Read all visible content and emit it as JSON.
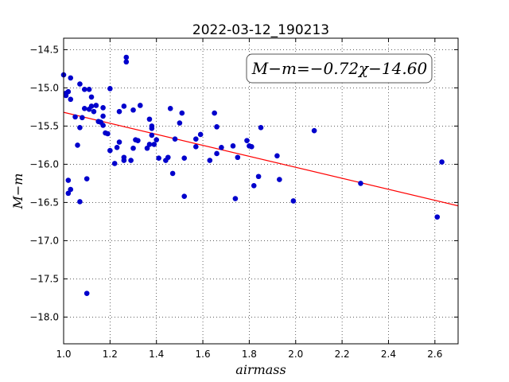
{
  "chart_data": {
    "type": "scatter",
    "title": "2022-03-12_190213",
    "xlabel": "airmass",
    "ylabel": "M−m",
    "xlim": [
      1.0,
      2.7
    ],
    "ylim": [
      -18.35,
      -14.35
    ],
    "x_ticks": [
      "1.0",
      "1.2",
      "1.4",
      "1.6",
      "1.8",
      "2.0",
      "2.2",
      "2.4",
      "2.6"
    ],
    "y_ticks": [
      "−14.5",
      "−15.0",
      "−15.5",
      "−16.0",
      "−16.5",
      "−17.0",
      "−17.5",
      "−18.0"
    ],
    "grid": true,
    "annotation": "M−m=−0.72χ−14.60",
    "fit": {
      "slope": -0.72,
      "intercept": -14.6,
      "color": "#ff0000"
    },
    "marker_color": "#0000cc",
    "points": [
      [
        1.0,
        -14.83
      ],
      [
        1.01,
        -15.07
      ],
      [
        1.01,
        -15.1
      ],
      [
        1.02,
        -15.05
      ],
      [
        1.03,
        -14.87
      ],
      [
        1.03,
        -15.15
      ],
      [
        1.05,
        -15.38
      ],
      [
        1.06,
        -15.75
      ],
      [
        1.07,
        -14.95
      ],
      [
        1.07,
        -15.52
      ],
      [
        1.08,
        -15.39
      ],
      [
        1.09,
        -15.27
      ],
      [
        1.09,
        -15.02
      ],
      [
        1.11,
        -15.28
      ],
      [
        1.11,
        -15.02
      ],
      [
        1.12,
        -15.12
      ],
      [
        1.12,
        -15.24
      ],
      [
        1.13,
        -15.31
      ],
      [
        1.14,
        -15.23
      ],
      [
        1.15,
        -15.44
      ],
      [
        1.16,
        -15.45
      ],
      [
        1.17,
        -15.26
      ],
      [
        1.17,
        -15.37
      ],
      [
        1.17,
        -15.49
      ],
      [
        1.18,
        -15.59
      ],
      [
        1.19,
        -15.6
      ],
      [
        1.2,
        -15.01
      ],
      [
        1.2,
        -15.82
      ],
      [
        1.22,
        -15.99
      ],
      [
        1.23,
        -15.78
      ],
      [
        1.24,
        -15.71
      ],
      [
        1.24,
        -15.31
      ],
      [
        1.26,
        -15.95
      ],
      [
        1.26,
        -15.91
      ],
      [
        1.26,
        -15.24
      ],
      [
        1.27,
        -14.6
      ],
      [
        1.27,
        -14.66
      ],
      [
        1.29,
        -15.95
      ],
      [
        1.3,
        -15.79
      ],
      [
        1.3,
        -15.29
      ],
      [
        1.31,
        -15.68
      ],
      [
        1.32,
        -15.69
      ],
      [
        1.33,
        -15.23
      ],
      [
        1.36,
        -15.79
      ],
      [
        1.37,
        -15.74
      ],
      [
        1.37,
        -15.41
      ],
      [
        1.38,
        -15.5
      ],
      [
        1.38,
        -15.53
      ],
      [
        1.38,
        -15.62
      ],
      [
        1.39,
        -15.74
      ],
      [
        1.4,
        -15.68
      ],
      [
        1.41,
        -15.92
      ],
      [
        1.44,
        -15.95
      ],
      [
        1.45,
        -15.91
      ],
      [
        1.46,
        -15.27
      ],
      [
        1.47,
        -16.12
      ],
      [
        1.48,
        -15.67
      ],
      [
        1.5,
        -15.46
      ],
      [
        1.51,
        -15.33
      ],
      [
        1.52,
        -15.92
      ],
      [
        1.52,
        -16.42
      ],
      [
        1.57,
        -15.77
      ],
      [
        1.57,
        -15.67
      ],
      [
        1.59,
        -15.61
      ],
      [
        1.63,
        -15.95
      ],
      [
        1.65,
        -15.33
      ],
      [
        1.66,
        -15.86
      ],
      [
        1.66,
        -15.51
      ],
      [
        1.68,
        -15.78
      ],
      [
        1.73,
        -15.76
      ],
      [
        1.74,
        -16.45
      ],
      [
        1.75,
        -15.91
      ],
      [
        1.79,
        -15.69
      ],
      [
        1.8,
        -15.76
      ],
      [
        1.81,
        -15.77
      ],
      [
        1.82,
        -16.28
      ],
      [
        1.84,
        -16.16
      ],
      [
        1.85,
        -15.52
      ],
      [
        1.92,
        -15.89
      ],
      [
        1.93,
        -16.2
      ],
      [
        1.99,
        -16.48
      ],
      [
        2.08,
        -15.56
      ],
      [
        2.28,
        -16.25
      ],
      [
        2.61,
        -16.69
      ],
      [
        2.63,
        -15.97
      ],
      [
        1.02,
        -16.21
      ],
      [
        1.02,
        -16.38
      ],
      [
        1.03,
        -16.33
      ],
      [
        1.07,
        -16.49
      ],
      [
        1.1,
        -16.19
      ],
      [
        1.1,
        -17.69
      ]
    ]
  }
}
